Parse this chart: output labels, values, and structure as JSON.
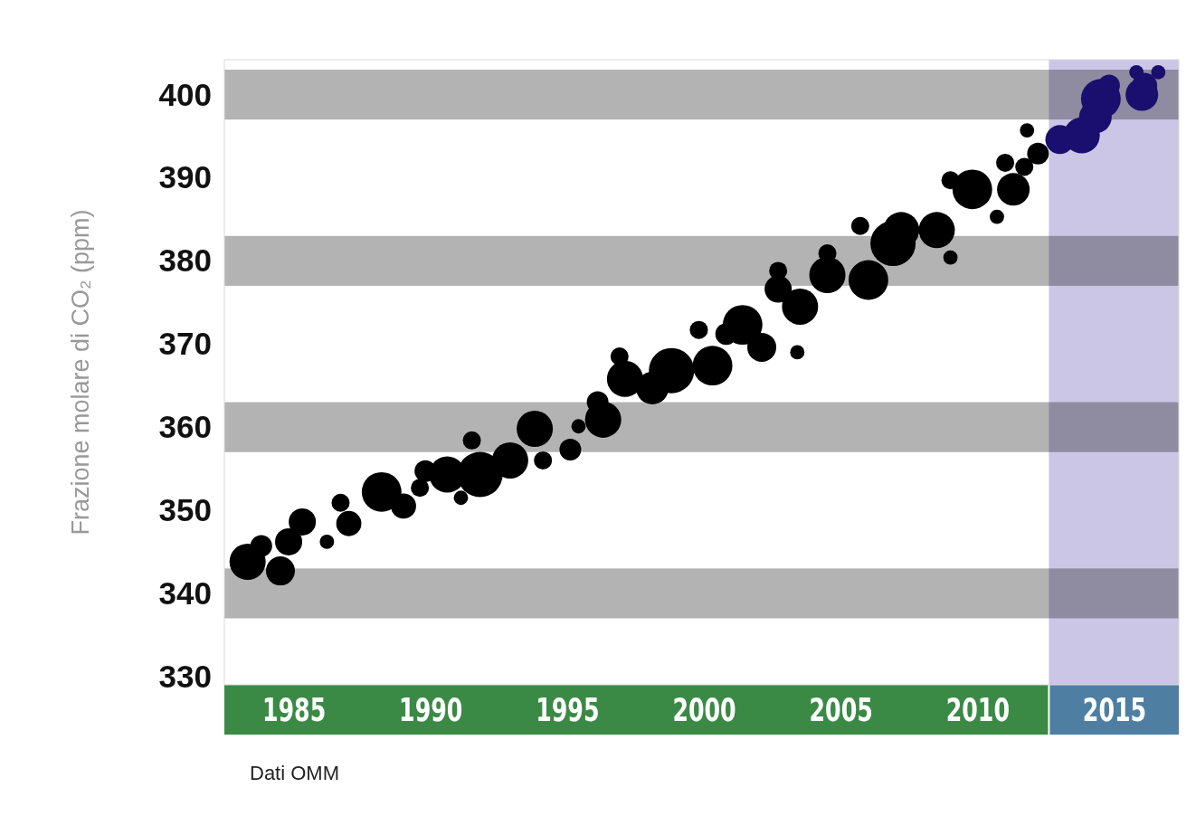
{
  "chart_data": {
    "type": "bubble",
    "ylabel": "Frazione molare di CO₂ (ppm)",
    "annotations": [
      "Dati OMM"
    ],
    "xlim": [
      1982.45,
      2017.35
    ],
    "ylim": [
      329,
      404.2
    ],
    "xticks": [
      1985,
      1990,
      1995,
      2000,
      2005,
      2010,
      2015
    ],
    "yticks": [
      330,
      340,
      350,
      360,
      370,
      380,
      390,
      400
    ],
    "grid": false,
    "bands": [
      {
        "axis": "y",
        "from": 397,
        "to": 403,
        "color": "#b3b3b3"
      },
      {
        "axis": "y",
        "from": 377,
        "to": 383,
        "color": "#b3b3b3"
      },
      {
        "axis": "y",
        "from": 357,
        "to": 363,
        "color": "#b3b3b3"
      },
      {
        "axis": "y",
        "from": 337,
        "to": 343,
        "color": "#b3b3b3"
      },
      {
        "axis": "x",
        "from": 2012.6,
        "to": 2017.35,
        "color": "#b9b0dc"
      }
    ],
    "series": [
      {
        "color": "#000000",
        "x": [
          1983.3,
          1983.8,
          1984.5,
          1985.3,
          1984.8,
          1986.2,
          1986.7,
          1987.0,
          1988.2,
          1989.0,
          1989.6,
          1989.8,
          1990.6,
          1991.1,
          1991.5,
          1991.8,
          1992.9,
          1993.8,
          1994.1,
          1995.1,
          1995.4,
          1996.1,
          1996.3,
          1996.9,
          1997.1,
          1998.1,
          1998.8,
          2000.3,
          1999.8,
          2000.8,
          2001.4,
          2002.1,
          2002.7,
          2002.7,
          2003.4,
          2003.5,
          2004.5,
          2004.5,
          2005.7,
          2006.0,
          2006.9,
          2007.2,
          2008.5,
          2009.0,
          2009.0,
          2009.8,
          2010.7,
          2011.0,
          2011.3,
          2011.7,
          2011.8,
          2012.2
        ],
        "values": [
          343.8,
          345.7,
          342.7,
          348.6,
          346.2,
          346.2,
          350.9,
          348.4,
          352.2,
          350.5,
          352.7,
          354.7,
          354.3,
          351.5,
          358.4,
          354.3,
          356.0,
          359.8,
          356.0,
          357.3,
          360.1,
          363.0,
          360.9,
          368.5,
          365.8,
          364.7,
          366.8,
          367.4,
          371.7,
          371.2,
          372.3,
          369.6,
          378.8,
          376.6,
          369.0,
          374.5,
          378.3,
          380.9,
          384.2,
          377.7,
          382.1,
          383.7,
          383.7,
          380.4,
          389.7,
          388.6,
          385.3,
          391.8,
          388.6,
          391.3,
          395.7,
          392.9
        ],
        "sizes": [
          0.64,
          0.23,
          0.41,
          0.36,
          0.36,
          0.1,
          0.16,
          0.31,
          0.77,
          0.31,
          0.16,
          0.23,
          0.64,
          0.1,
          0.16,
          1,
          0.64,
          0.64,
          0.16,
          0.23,
          0.1,
          0.23,
          0.64,
          0.16,
          0.64,
          0.52,
          1,
          0.77,
          0.16,
          0.23,
          0.77,
          0.41,
          0.16,
          0.36,
          0.1,
          0.64,
          0.64,
          0.16,
          0.16,
          0.77,
          1,
          0.64,
          0.64,
          0.1,
          0.16,
          0.77,
          0.1,
          0.16,
          0.52,
          0.16,
          0.1,
          0.23
        ]
      },
      {
        "color": "#1a0f6e",
        "x": [
          2013.0,
          2013.8,
          2014.3,
          2014.5,
          2014.8,
          2016.0,
          2016.1,
          2015.8,
          2016.6
        ],
        "values": [
          394.6,
          395.1,
          397.3,
          399.5,
          401.1,
          400.0,
          401.1,
          402.7,
          402.7
        ],
        "sizes": [
          0.41,
          0.64,
          0.52,
          0.77,
          0.23,
          0.52,
          0.31,
          0.1,
          0.1
        ]
      }
    ]
  }
}
